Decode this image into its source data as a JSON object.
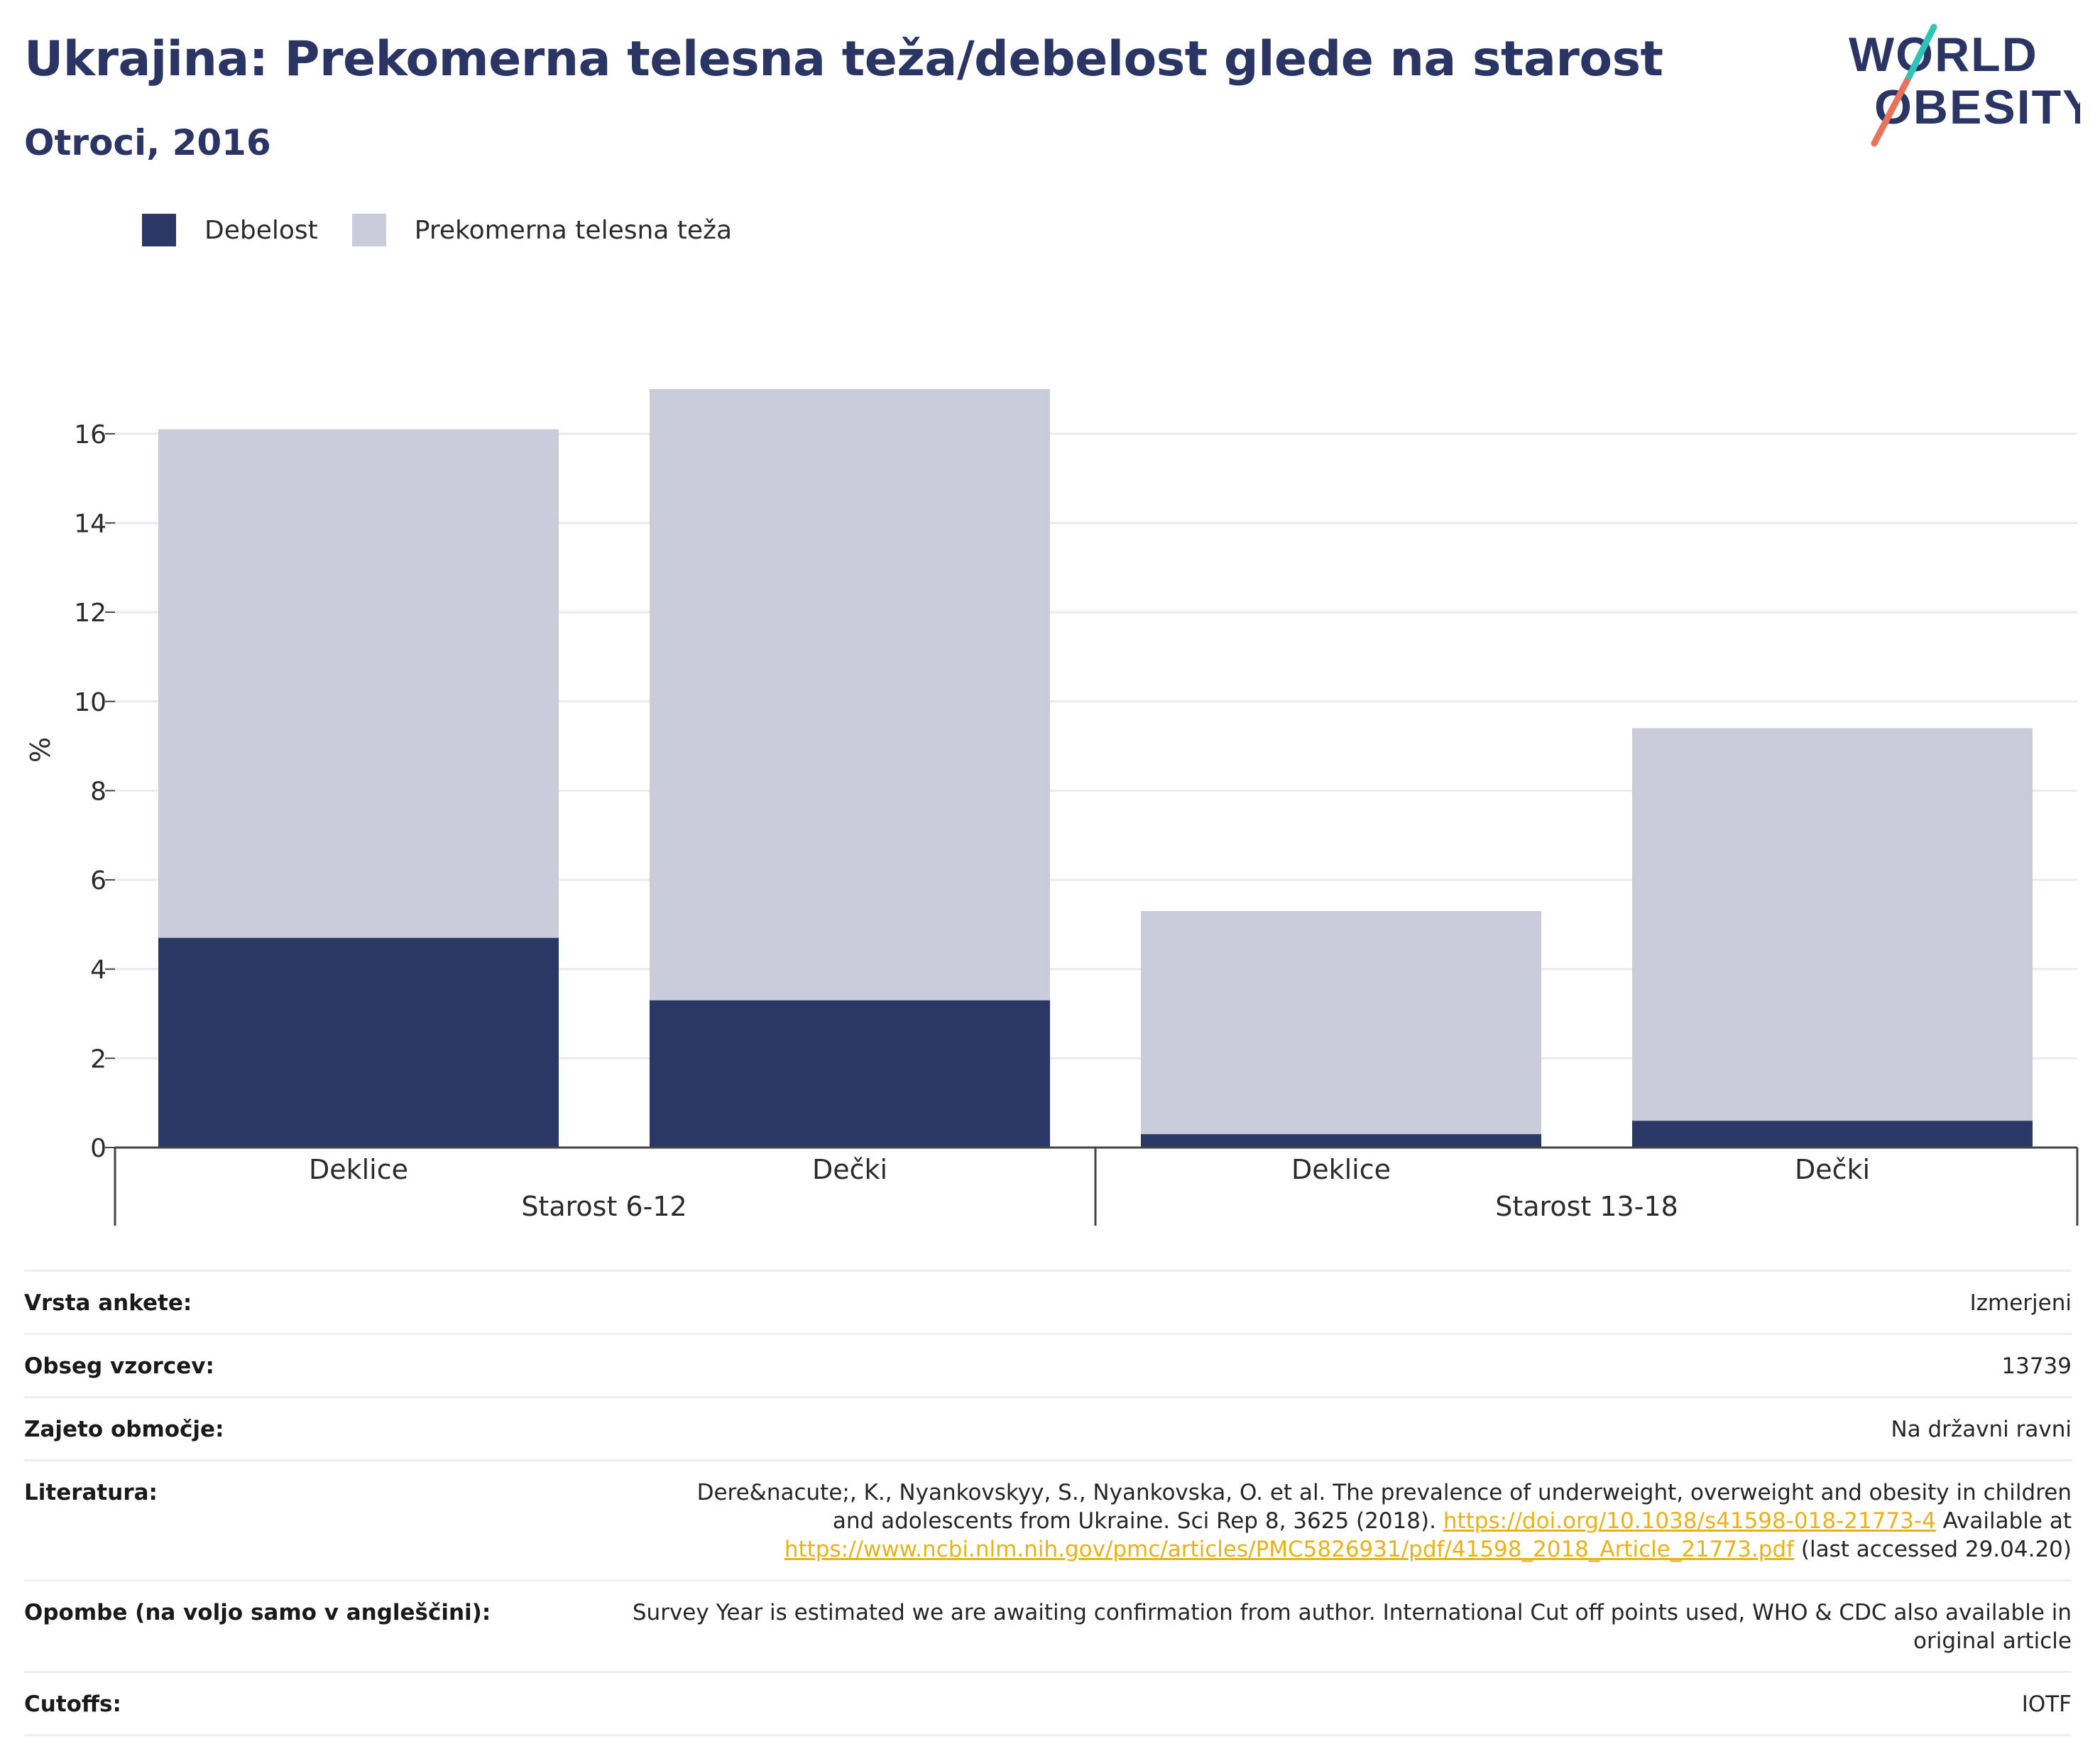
{
  "title": "Ukrajina: Prekomerna telesna teža/debelost glede na starost",
  "subtitle": "Otroci, 2016",
  "logo": {
    "line1": "WORLD",
    "line2": "OBESITY"
  },
  "colors": {
    "obesity": "#2b3765",
    "overweight": "#c9ccd8",
    "title": "#2a3563",
    "link": "#e8b21a"
  },
  "legend": [
    {
      "label": "Debelost",
      "color": "#2b3765"
    },
    {
      "label": "Prekomerna telesna teža",
      "color": "#c9ccd8"
    }
  ],
  "chart_data": {
    "type": "bar",
    "stacked": true,
    "ylabel": "%",
    "ylim": [
      0,
      17
    ],
    "yticks": [
      0,
      2,
      4,
      6,
      8,
      10,
      12,
      14,
      16
    ],
    "grid": true,
    "legend_position": "top-left",
    "groups": [
      {
        "label": "Starost 6-12",
        "categories": [
          "Deklice",
          "Dečki"
        ]
      },
      {
        "label": "Starost 13-18",
        "categories": [
          "Deklice",
          "Dečki"
        ]
      }
    ],
    "categories": [
      "Deklice",
      "Dečki",
      "Deklice",
      "Dečki"
    ],
    "series": [
      {
        "name": "Debelost",
        "values": [
          4.7,
          3.3,
          0.3,
          0.6
        ]
      },
      {
        "name": "Prekomerna telesna teža",
        "values": [
          11.4,
          13.7,
          5.0,
          8.8
        ]
      }
    ]
  },
  "info": {
    "survey_type": {
      "label": "Vrsta ankete:",
      "value": "Izmerjeni"
    },
    "sample_size": {
      "label": "Obseg vzorcev:",
      "value": "13739"
    },
    "coverage": {
      "label": "Zajeto območje:",
      "value": "Na državni ravni"
    },
    "literature": {
      "label": "Literatura:",
      "text1": "Dere&nacute;, K., Nyankovskyy, S., Nyankovska, O. et al. The prevalence of underweight, overweight and obesity in children and adolescents from Ukraine. Sci Rep 8, 3625 (2018). ",
      "link1": "https://doi.org/10.1038/s41598-018-21773-4",
      "text2": " Available at ",
      "link2": "https://www.ncbi.nlm.nih.gov/pmc/articles/PMC5826931/pdf/41598_2018_Article_21773.pdf",
      "text3": " (last accessed 29.04.20)"
    },
    "notes": {
      "label": "Opombe (na voljo samo v angleščini):",
      "value": "Survey Year is estimated we are awaiting confirmation from author. International Cut off points used, WHO & CDC also available in original article"
    },
    "cutoffs": {
      "label": "Cutoffs:",
      "value": "IOTF"
    }
  }
}
